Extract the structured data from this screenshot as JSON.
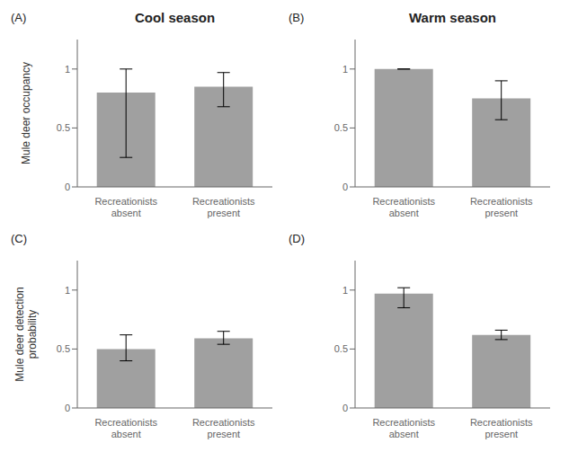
{
  "chart_data": [
    {
      "type": "bar",
      "title": "Cool season",
      "ylabel": "Mule deer occupancy",
      "annotations": [
        "(A)"
      ],
      "categories": [
        "Recreationists\nabsent",
        "Recreationists\npresent"
      ],
      "values": [
        0.8,
        0.85
      ],
      "err_low": [
        0.55,
        0.17
      ],
      "err_high": [
        0.2,
        0.12
      ],
      "color": "#a0a0a0",
      "ylim": [
        0,
        1.25
      ],
      "yticks": [
        0,
        0.5,
        1
      ]
    },
    {
      "type": "bar",
      "title": "Warm season",
      "annotations": [
        "(B)"
      ],
      "categories": [
        "Recreationists\nabsent",
        "Recreationists\npresent"
      ],
      "values": [
        1.0,
        0.75
      ],
      "err_low": [
        0.0,
        0.18
      ],
      "err_high": [
        0.0,
        0.15
      ],
      "color": "#a0a0a0",
      "ylim": [
        0,
        1.25
      ],
      "yticks": [
        0,
        0.5,
        1
      ]
    },
    {
      "type": "bar",
      "ylabel": "Mule deer detection\nprobability",
      "annotations": [
        "(C)"
      ],
      "categories": [
        "Recreationists\nabsent",
        "Recreationists\npresent"
      ],
      "values": [
        0.5,
        0.59
      ],
      "err_low": [
        0.1,
        0.05
      ],
      "err_high": [
        0.12,
        0.06
      ],
      "color": "#a0a0a0",
      "ylim": [
        0,
        1.25
      ],
      "yticks": [
        0,
        0.5,
        1
      ]
    },
    {
      "type": "bar",
      "annotations": [
        "(D)"
      ],
      "categories": [
        "Recreationists\nabsent",
        "Recreationists\npresent"
      ],
      "values": [
        0.97,
        0.62
      ],
      "err_low": [
        0.12,
        0.04
      ],
      "err_high": [
        0.05,
        0.04
      ],
      "color": "#a0a0a0",
      "ylim": [
        0,
        1.25
      ],
      "yticks": [
        0,
        0.5,
        1
      ]
    }
  ]
}
